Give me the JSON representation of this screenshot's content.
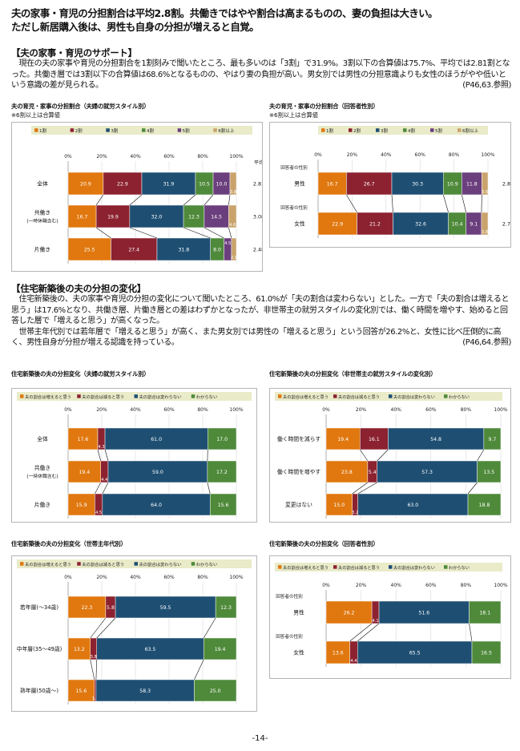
{
  "headline": {
    "line1": "夫の家事・育児の分担割合は平均2.8割。共働きではやや割合は高まるものの、妻の負担は大きい。",
    "line2": "ただし新居購入後は、男性も自身の分担が増えると自覚。"
  },
  "section1": {
    "title": "【夫の家事・育児のサポート】",
    "body": "　現在の夫の家事や育児の分担割合を1割刻みで聞いたところ、最も多いのは「3割」で31.9%。3割以下の合算値は75.7%、平均では2.81割となった。共働き層では3割以下の合算値は68.6%となるものの、やはり妻の負担が高い。男女別では男性の分担意識よりも女性のほうがやや低いという意識の差が見られる。",
    "ref": "(P46,63.参照)"
  },
  "section2": {
    "title": "【住宅新築後の夫の分担の変化】",
    "body1": "　住宅新築後の、夫の家事や育児の分担の変化について聞いたところ、61.0%が「夫の割合は変わらない」とした。一方で「夫の割合は増えると思う」は17.6%となり、共働き層、片働き層との差はわずかとなったが、非世帯主の就労スタイルの変化別では、働く時間を増やす、始めると回答した層で「増えると思う」が高くなった。",
    "body2": "　世帯主年代別では若年層で「増えると思う」が高く、また男女別では男性の「増えると思う」という回答が26.2%と、女性に比べ圧倒的に高く、男性自身が分担が増える認識を持っている。",
    "ref": "(P46,64.参照)"
  },
  "page_number": "-14-",
  "chart_data": [
    {
      "type": "bar",
      "title": "夫の育児・家事の分担割合（夫婦の就労スタイル別）",
      "note": "※6割以上は合算値",
      "legend": [
        "1割",
        "2割",
        "3割",
        "4割",
        "5割",
        "6割以上"
      ],
      "colors": [
        "#e0780f",
        "#8c2230",
        "#1e4f73",
        "#4f8a3b",
        "#6b3f7d",
        "#c9a36b"
      ],
      "axis_ticks": [
        "0%",
        "20%",
        "40%",
        "60%",
        "80%",
        "100%"
      ],
      "avg_header": "平均",
      "rows": [
        {
          "label": [
            "全体"
          ],
          "values": [
            20.9,
            22.9,
            31.9,
            10.5,
            10.0,
            3.8
          ],
          "labels": [
            "20.9",
            "22.9",
            "31.9",
            "10.5",
            "10.0",
            "3.8"
          ],
          "avg": "2.81"
        },
        {
          "label": [
            "共働き",
            "(一時休職含む)"
          ],
          "values": [
            16.7,
            19.9,
            32.0,
            12.3,
            14.5,
            4.6
          ],
          "labels": [
            "16.7",
            "19.9",
            "32.0",
            "12.3",
            "14.5",
            "4.6"
          ],
          "avg": "3.08"
        },
        {
          "label": [
            "片働き"
          ],
          "values": [
            25.5,
            27.4,
            31.8,
            8.0,
            4.5,
            2.9
          ],
          "labels": [
            "25.5",
            "27.4",
            "31.8",
            "8.0",
            "4.5",
            "2.9"
          ],
          "avg": "2.48"
        }
      ]
    },
    {
      "type": "bar",
      "title": "夫の育児・家事の分担割合（回答者性別）",
      "note": "※6割以上は合算値",
      "legend": [
        "1割",
        "2割",
        "3割",
        "4割",
        "5割",
        "6割以上"
      ],
      "colors": [
        "#e0780f",
        "#8c2230",
        "#1e4f73",
        "#4f8a3b",
        "#6b3f7d",
        "#c9a36b"
      ],
      "axis_ticks": [
        "0%",
        "20%",
        "40%",
        "60%",
        "80%",
        "100%"
      ],
      "group_label": "回答者の性別",
      "rows": [
        {
          "label": [
            "男性"
          ],
          "values": [
            16.7,
            26.7,
            30.3,
            10.9,
            11.8,
            3.6
          ],
          "labels": [
            "16.7",
            "26.7",
            "30.3",
            "10.9",
            "11.8",
            "3.6"
          ],
          "avg": "2.89"
        },
        {
          "label": [
            "女性"
          ],
          "values": [
            22.9,
            21.2,
            32.6,
            10.4,
            9.1,
            3.8
          ],
          "labels": [
            "22.9",
            "21.2",
            "32.6",
            "10.4",
            "9.1",
            "3.8"
          ],
          "avg": "2.77"
        }
      ]
    },
    {
      "type": "bar",
      "title": "住宅新築後の夫の分担変化（夫婦の就労スタイル別）",
      "legend": [
        "夫の割合は増えると思う",
        "夫の割合は減ると思う",
        "夫の割合は変わらない",
        "わからない"
      ],
      "colors": [
        "#e0780f",
        "#8c2230",
        "#1e4f73",
        "#4f8a3b"
      ],
      "axis_ticks": [
        "0%",
        "20%",
        "40%",
        "60%",
        "80%",
        "100%"
      ],
      "rows": [
        {
          "label": [
            "全体"
          ],
          "values": [
            17.6,
            4.3,
            61.0,
            17.0
          ],
          "labels": [
            "17.6",
            "4.3",
            "61.0",
            "17.0"
          ]
        },
        {
          "label": [
            "共働き",
            "(一時休職含む)"
          ],
          "values": [
            19.4,
            4.4,
            59.0,
            17.2
          ],
          "labels": [
            "19.4",
            "4.4",
            "59.0",
            "17.2"
          ]
        },
        {
          "label": [
            "片働き"
          ],
          "values": [
            15.9,
            4.5,
            64.0,
            15.6
          ],
          "labels": [
            "15.9",
            "4.5",
            "64.0",
            "15.6"
          ]
        }
      ]
    },
    {
      "type": "bar",
      "title": "住宅新築後の夫の分担変化（非世帯主の就労スタイルの変化別）",
      "legend": [
        "夫の割合は増えると思う",
        "夫の割合は減ると思う",
        "夫の割合は変わらない",
        "わからない"
      ],
      "colors": [
        "#e0780f",
        "#8c2230",
        "#1e4f73",
        "#4f8a3b"
      ],
      "axis_ticks": [
        "0%",
        "20%",
        "40%",
        "60%",
        "80%",
        "100%"
      ],
      "rows": [
        {
          "label": [
            "働く時間を減らす"
          ],
          "values": [
            19.4,
            16.1,
            54.8,
            9.7
          ],
          "labels": [
            "19.4",
            "16.1",
            "54.8",
            "9.7"
          ]
        },
        {
          "label": [
            "働く時間を増やす"
          ],
          "values": [
            23.8,
            5.4,
            57.3,
            13.5
          ],
          "labels": [
            "23.8",
            "5.4",
            "57.3",
            "13.5"
          ]
        },
        {
          "label": [
            "変更はない"
          ],
          "values": [
            15.0,
            3.2,
            63.0,
            18.8
          ],
          "labels": [
            "15.0",
            "3.2",
            "63.0",
            "18.8"
          ]
        }
      ]
    },
    {
      "type": "bar",
      "title": "住宅新築後の夫の分担変化（世帯主年代別）",
      "legend": [
        "夫の割合は増えると思う",
        "夫の割合は減ると思う",
        "夫の割合は変わらない",
        "わからない"
      ],
      "colors": [
        "#e0780f",
        "#8c2230",
        "#1e4f73",
        "#4f8a3b"
      ],
      "axis_ticks": [
        "0%",
        "20%",
        "40%",
        "60%",
        "80%",
        "100%"
      ],
      "rows": [
        {
          "label": [
            "若年層(～34歳)"
          ],
          "values": [
            22.3,
            5.8,
            59.5,
            12.3
          ],
          "labels": [
            "22.3",
            "5.8",
            "59.5",
            "12.3"
          ]
        },
        {
          "label": [
            "中年層(35～49歳)"
          ],
          "values": [
            13.2,
            3.8,
            63.5,
            19.4
          ],
          "labels": [
            "13.2",
            "3.8",
            "63.5",
            "19.4"
          ]
        },
        {
          "label": [
            "熟年層(50歳～)"
          ],
          "values": [
            15.6,
            1.0,
            58.3,
            25.0
          ],
          "labels": [
            "15.6",
            "1.0",
            "58.3",
            "25.0"
          ]
        }
      ]
    },
    {
      "type": "bar",
      "title": "住宅新築後の夫の分担変化（回答者性別）",
      "legend": [
        "夫の割合は増えると思う",
        "夫の割合は減ると思う",
        "夫の割合は変わらない",
        "わからない"
      ],
      "colors": [
        "#e0780f",
        "#8c2230",
        "#1e4f73",
        "#4f8a3b"
      ],
      "axis_ticks": [
        "0%",
        "20%",
        "40%",
        "60%",
        "80%",
        "100%"
      ],
      "group_label": "回答者の性別",
      "rows": [
        {
          "label": [
            "男性"
          ],
          "values": [
            26.2,
            4.1,
            51.6,
            18.1
          ],
          "labels": [
            "26.2",
            "4.1",
            "51.6",
            "18.1"
          ]
        },
        {
          "label": [
            "女性"
          ],
          "values": [
            13.6,
            4.4,
            65.5,
            16.5
          ],
          "labels": [
            "13.6",
            "4.4",
            "65.5",
            "16.5"
          ]
        }
      ]
    }
  ]
}
